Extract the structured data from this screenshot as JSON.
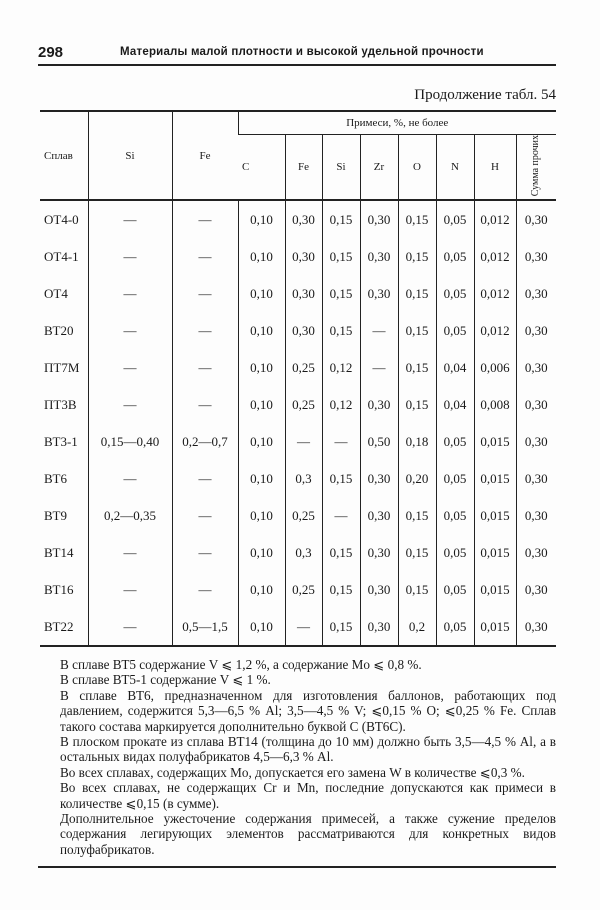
{
  "header": {
    "page_number": "298",
    "running_title": "Материалы малой плотности и высокой удельной прочности"
  },
  "continuation": "Продолжение табл. 54",
  "table": {
    "col_alloy": "Сплав",
    "col_si": "Si",
    "col_fe": "Fe",
    "impurities_group": "Примеси, %, не более",
    "impurity_cols": [
      "C",
      "Fe",
      "Si",
      "Zr",
      "O",
      "N",
      "H",
      "Сумма прочих"
    ],
    "rows": [
      [
        "ОТ4-0",
        "—",
        "—",
        "0,10",
        "0,30",
        "0,15",
        "0,30",
        "0,15",
        "0,05",
        "0,012",
        "0,30"
      ],
      [
        "ОТ4-1",
        "—",
        "—",
        "0,10",
        "0,30",
        "0,15",
        "0,30",
        "0,15",
        "0,05",
        "0,012",
        "0,30"
      ],
      [
        "ОТ4",
        "—",
        "—",
        "0,10",
        "0,30",
        "0,15",
        "0,30",
        "0,15",
        "0,05",
        "0,012",
        "0,30"
      ],
      [
        "ВТ20",
        "—",
        "—",
        "0,10",
        "0,30",
        "0,15",
        "—",
        "0,15",
        "0,05",
        "0,012",
        "0,30"
      ],
      [
        "ПТ7М",
        "—",
        "—",
        "0,10",
        "0,25",
        "0,12",
        "—",
        "0,15",
        "0,04",
        "0,006",
        "0,30"
      ],
      [
        "ПТ3В",
        "—",
        "—",
        "0,10",
        "0,25",
        "0,12",
        "0,30",
        "0,15",
        "0,04",
        "0,008",
        "0,30"
      ],
      [
        "ВТ3-1",
        "0,15—0,40",
        "0,2—0,7",
        "0,10",
        "—",
        "—",
        "0,50",
        "0,18",
        "0,05",
        "0,015",
        "0,30"
      ],
      [
        "ВТ6",
        "—",
        "—",
        "0,10",
        "0,3",
        "0,15",
        "0,30",
        "0,20",
        "0,05",
        "0,015",
        "0,30"
      ],
      [
        "ВТ9",
        "0,2—0,35",
        "—",
        "0,10",
        "0,25",
        "—",
        "0,30",
        "0,15",
        "0,05",
        "0,015",
        "0,30"
      ],
      [
        "ВТ14",
        "—",
        "—",
        "0,10",
        "0,3",
        "0,15",
        "0,30",
        "0,15",
        "0,05",
        "0,015",
        "0,30"
      ],
      [
        "ВТ16",
        "—",
        "—",
        "0,10",
        "0,25",
        "0,15",
        "0,30",
        "0,15",
        "0,05",
        "0,015",
        "0,30"
      ],
      [
        "ВТ22",
        "—",
        "0,5—1,5",
        "0,10",
        "—",
        "0,15",
        "0,30",
        "0,2",
        "0,05",
        "0,015",
        "0,30"
      ]
    ]
  },
  "notes": [
    "В сплаве ВТ5 содержание V ⩽ 1,2 %, а содержание Mo ⩽ 0,8 %.",
    "В сплаве ВТ5-1 содержание V ⩽ 1 %.",
    "В сплаве ВТ6, предназначенном для изготовления баллонов, работающих под давлением, содержится 5,3—6,5 % Al; 3,5—4,5 % V; ⩽0,15 % O; ⩽0,25 % Fe. Сплав такого состава маркируется дополнительно буквой С (ВТ6С).",
    "В плоском прокате из сплава ВТ14 (толщина до 10 мм) должно быть 3,5—4,5 % Al, а в остальных видах полуфабрикатов 4,5—6,3 % Al.",
    "Во всех сплавах, содержащих Mo, допускается его замена W в количестве ⩽0,3 %.",
    "Во всех сплавах, не содержащих Cr и Mn, последние допускаются как примеси в количестве ⩽0,15 (в сумме).",
    "Дополнительное ужесточение содержания примесей, а также сужение пределов содержания легирующих элементов рассматриваются для конкретных видов полуфабрикатов."
  ]
}
